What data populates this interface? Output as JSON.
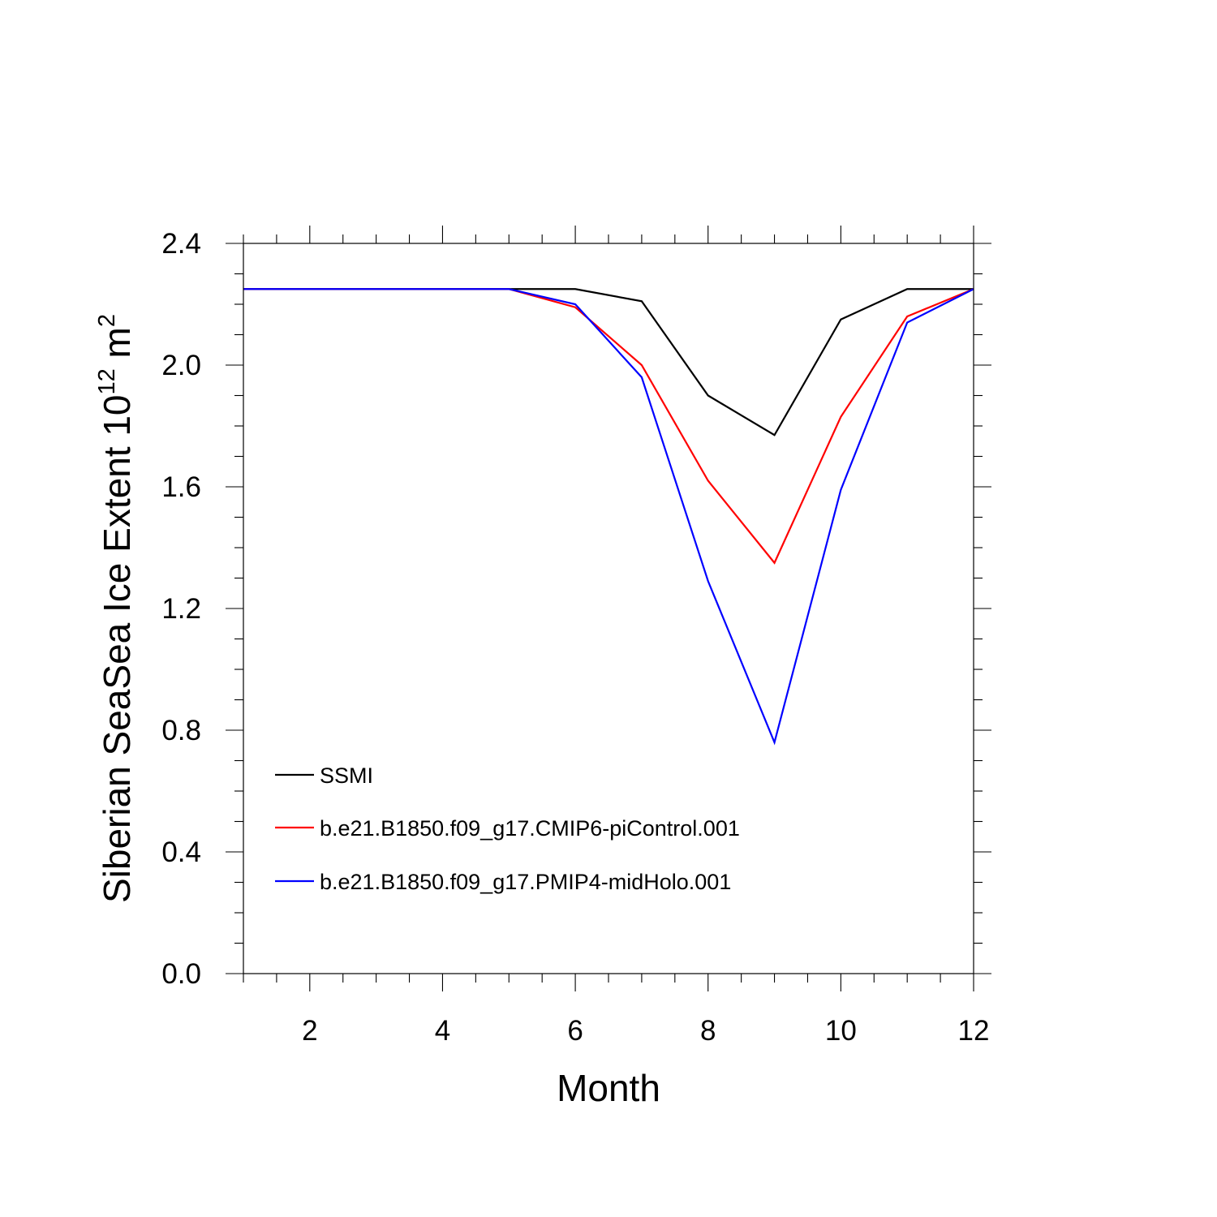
{
  "chart_data": {
    "type": "line",
    "title": "",
    "xlabel": "Month",
    "ylabel": {
      "prefix": "Siberian SeaSea Ice Extent 10",
      "exponent": "12",
      "unit": " m",
      "unit_exponent": "2"
    },
    "xlim": [
      1,
      12
    ],
    "ylim": [
      0,
      2.4
    ],
    "xticks": [
      2,
      4,
      6,
      8,
      10,
      12
    ],
    "xtick_labels": [
      "2",
      "4",
      "6",
      "8",
      "10",
      "12"
    ],
    "xminor_step": 0.5,
    "yticks": [
      0,
      0.4,
      0.8,
      1.2,
      1.6,
      2.0,
      2.4
    ],
    "ytick_labels": [
      "0.0",
      "0.4",
      "0.8",
      "1.2",
      "1.6",
      "2.0",
      "2.4"
    ],
    "yminor_step": 0.1,
    "grid": false,
    "legend_position": "bottom-left",
    "x": [
      1,
      2,
      3,
      4,
      5,
      6,
      7,
      8,
      9,
      10,
      11,
      12
    ],
    "series": [
      {
        "name": "SSMI",
        "color": "#000000",
        "values": [
          2.25,
          2.25,
          2.25,
          2.25,
          2.25,
          2.25,
          2.21,
          1.9,
          1.77,
          2.15,
          2.25,
          2.25
        ]
      },
      {
        "name": "b.e21.B1850.f09_g17.CMIP6-piControl.001",
        "color": "#ff0000",
        "values": [
          2.25,
          2.25,
          2.25,
          2.25,
          2.25,
          2.19,
          2.0,
          1.62,
          1.35,
          1.83,
          2.16,
          2.25
        ]
      },
      {
        "name": "b.e21.B1850.f09_g17.PMIP4-midHolo.001",
        "color": "#0000ff",
        "values": [
          2.25,
          2.25,
          2.25,
          2.25,
          2.25,
          2.2,
          1.96,
          1.29,
          0.76,
          1.59,
          2.14,
          2.25
        ]
      }
    ]
  }
}
